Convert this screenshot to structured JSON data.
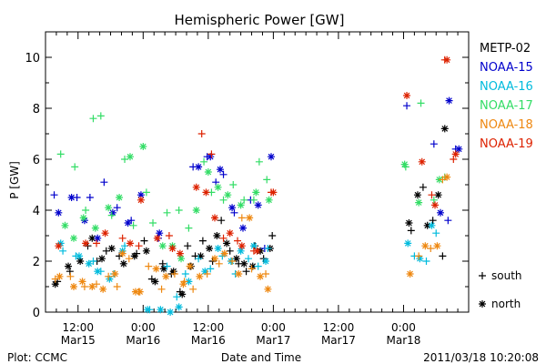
{
  "chart_data": {
    "type": "scatter",
    "title": "Hemispheric Power [GW]",
    "xlabel": "Date and Time",
    "ylabel": "P [GW]",
    "footer_left": "Plot: CCMC",
    "footer_right": "2011/03/18 10:20:08",
    "x_unit": "hours",
    "xlim": [
      6,
      84
    ],
    "ylim": [
      0,
      11
    ],
    "y_ticks": [
      0,
      2,
      4,
      6,
      8,
      10
    ],
    "x_ticks": [
      {
        "x": 12,
        "time": "12:00",
        "date": "Mar15"
      },
      {
        "x": 24,
        "time": "0:00",
        "date": "Mar16"
      },
      {
        "x": 36,
        "time": "12:00",
        "date": "Mar16"
      },
      {
        "x": 48,
        "time": "0:00",
        "date": "Mar17"
      },
      {
        "x": 60,
        "time": "12:00",
        "date": "Mar17"
      },
      {
        "x": 72,
        "time": "0:00",
        "date": "Mar18"
      }
    ],
    "legend_position": "right",
    "symbol_legend": [
      {
        "symbol": "+",
        "label": "south"
      },
      {
        "symbol": "*",
        "label": "north"
      }
    ],
    "series": [
      {
        "name": "METP-02",
        "color": "#000000",
        "south": [
          [
            8.2,
            1.2
          ],
          [
            10.5,
            1.6
          ],
          [
            13.8,
            2.6
          ],
          [
            15.5,
            2.0
          ],
          [
            17.2,
            2.4
          ],
          [
            19.6,
            2.2
          ],
          [
            22.8,
            2.3
          ],
          [
            24.2,
            2.8
          ],
          [
            25.6,
            1.3
          ],
          [
            27.6,
            1.9
          ],
          [
            29.2,
            1.5
          ],
          [
            30.8,
            0.8
          ],
          [
            32.2,
            2.6
          ],
          [
            33.6,
            2.2
          ],
          [
            35.0,
            2.8
          ],
          [
            36.8,
            2.0
          ],
          [
            38.4,
            3.6
          ],
          [
            40.0,
            2.4
          ],
          [
            41.6,
            1.9
          ],
          [
            43.0,
            1.6
          ],
          [
            44.6,
            2.6
          ],
          [
            46.2,
            2.1
          ],
          [
            47.8,
            3.0
          ],
          [
            73.4,
            3.2
          ],
          [
            75.6,
            4.9
          ],
          [
            77.4,
            3.6
          ],
          [
            79.2,
            2.2
          ]
        ],
        "north": [
          [
            7.8,
            1.1
          ],
          [
            10.2,
            1.8
          ],
          [
            12.4,
            2.0
          ],
          [
            14.6,
            2.9
          ],
          [
            16.4,
            2.1
          ],
          [
            18.2,
            2.5
          ],
          [
            20.4,
            1.9
          ],
          [
            22.4,
            2.2
          ],
          [
            24.6,
            2.4
          ],
          [
            26.2,
            1.2
          ],
          [
            27.8,
            1.7
          ],
          [
            29.6,
            1.6
          ],
          [
            31.2,
            0.7
          ],
          [
            32.8,
            1.8
          ],
          [
            34.6,
            2.2
          ],
          [
            36.2,
            2.5
          ],
          [
            37.6,
            3.0
          ],
          [
            39.4,
            2.7
          ],
          [
            41.2,
            2.1
          ],
          [
            42.6,
            1.9
          ],
          [
            44.2,
            1.8
          ],
          [
            45.6,
            2.4
          ],
          [
            47.4,
            2.5
          ],
          [
            73.0,
            3.5
          ],
          [
            74.6,
            4.6
          ],
          [
            76.4,
            3.4
          ],
          [
            78.4,
            4.6
          ],
          [
            79.6,
            7.2
          ]
        ]
      },
      {
        "name": "NOAA-15",
        "color": "#0000cc",
        "south": [
          [
            7.6,
            4.6
          ],
          [
            11.8,
            4.5
          ],
          [
            14.2,
            4.5
          ],
          [
            16.8,
            5.1
          ],
          [
            19.2,
            4.1
          ],
          [
            21.8,
            3.6
          ],
          [
            26.8,
            2.9
          ],
          [
            33.2,
            5.7
          ],
          [
            35.8,
            6.1
          ],
          [
            37.4,
            5.1
          ],
          [
            38.8,
            5.4
          ],
          [
            40.8,
            3.9
          ],
          [
            43.8,
            4.4
          ],
          [
            46.4,
            2.5
          ],
          [
            72.6,
            8.1
          ],
          [
            77.6,
            6.6
          ],
          [
            80.2,
            3.6
          ],
          [
            81.6,
            6.4
          ]
        ],
        "north": [
          [
            8.4,
            3.9
          ],
          [
            10.8,
            4.5
          ],
          [
            13.2,
            3.6
          ],
          [
            15.6,
            2.9
          ],
          [
            18.4,
            3.9
          ],
          [
            21.2,
            3.5
          ],
          [
            23.6,
            4.6
          ],
          [
            27.0,
            3.1
          ],
          [
            34.2,
            5.7
          ],
          [
            36.4,
            6.1
          ],
          [
            38.2,
            5.6
          ],
          [
            40.4,
            4.1
          ],
          [
            42.4,
            3.3
          ],
          [
            45.2,
            4.2
          ],
          [
            47.6,
            6.1
          ],
          [
            78.8,
            3.9
          ],
          [
            80.4,
            8.3
          ],
          [
            82.2,
            6.4
          ]
        ]
      },
      {
        "name": "NOAA-16",
        "color": "#00bbdd",
        "south": [
          [
            9.2,
            2.4
          ],
          [
            11.6,
            2.2
          ],
          [
            14.8,
            2.0
          ],
          [
            16.2,
            1.6
          ],
          [
            18.6,
            1.5
          ],
          [
            20.6,
            2.6
          ],
          [
            25.2,
            0.1
          ],
          [
            28.4,
            1.8
          ],
          [
            30.2,
            0.6
          ],
          [
            31.8,
            1.5
          ],
          [
            34.2,
            2.1
          ],
          [
            36.4,
            1.7
          ],
          [
            38.6,
            2.2
          ],
          [
            41.0,
            1.5
          ],
          [
            43.4,
            2.1
          ],
          [
            45.2,
            1.8
          ],
          [
            47.0,
            2.5
          ],
          [
            74.0,
            2.2
          ],
          [
            76.2,
            2.0
          ],
          [
            78.0,
            3.1
          ]
        ],
        "north": [
          [
            8.8,
            2.7
          ],
          [
            12.2,
            2.2
          ],
          [
            14.0,
            1.9
          ],
          [
            15.6,
            1.6
          ],
          [
            17.8,
            1.3
          ],
          [
            20.2,
            2.4
          ],
          [
            24.8,
            0.1
          ],
          [
            27.2,
            0.1
          ],
          [
            29.0,
            0.0
          ],
          [
            30.6,
            0.2
          ],
          [
            32.4,
            1.2
          ],
          [
            35.4,
            1.6
          ],
          [
            37.8,
            2.5
          ],
          [
            40.2,
            2.0
          ],
          [
            42.0,
            2.4
          ],
          [
            44.4,
            2.6
          ],
          [
            46.6,
            2.0
          ],
          [
            72.8,
            2.7
          ],
          [
            75.0,
            2.1
          ],
          [
            77.2,
            3.4
          ]
        ]
      },
      {
        "name": "NOAA-17",
        "color": "#33dd66",
        "south": [
          [
            8.8,
            6.2
          ],
          [
            11.4,
            5.7
          ],
          [
            13.4,
            4.0
          ],
          [
            14.8,
            7.6
          ],
          [
            16.2,
            7.7
          ],
          [
            18.2,
            3.8
          ],
          [
            20.6,
            6.0
          ],
          [
            22.2,
            3.4
          ],
          [
            24.6,
            4.7
          ],
          [
            25.8,
            3.5
          ],
          [
            28.4,
            3.9
          ],
          [
            30.6,
            4.0
          ],
          [
            32.4,
            3.3
          ],
          [
            35.2,
            5.9
          ],
          [
            36.6,
            4.7
          ],
          [
            38.8,
            4.4
          ],
          [
            40.6,
            5.0
          ],
          [
            42.6,
            4.4
          ],
          [
            44.4,
            4.4
          ],
          [
            45.4,
            5.9
          ],
          [
            46.8,
            5.2
          ],
          [
            72.4,
            5.7
          ],
          [
            75.2,
            8.2
          ],
          [
            77.6,
            4.4
          ],
          [
            79.6,
            5.3
          ]
        ],
        "north": [
          [
            9.6,
            3.4
          ],
          [
            11.2,
            2.9
          ],
          [
            13.0,
            3.7
          ],
          [
            15.2,
            3.3
          ],
          [
            17.6,
            4.1
          ],
          [
            19.6,
            4.5
          ],
          [
            21.6,
            6.1
          ],
          [
            24.0,
            6.5
          ],
          [
            27.6,
            2.6
          ],
          [
            29.4,
            2.6
          ],
          [
            31.0,
            2.1
          ],
          [
            33.8,
            4.0
          ],
          [
            36.0,
            5.5
          ],
          [
            37.8,
            4.9
          ],
          [
            39.6,
            4.6
          ],
          [
            42.0,
            4.2
          ],
          [
            44.8,
            4.7
          ],
          [
            47.2,
            4.4
          ],
          [
            72.2,
            5.8
          ],
          [
            74.8,
            4.3
          ],
          [
            78.6,
            5.2
          ]
        ]
      },
      {
        "name": "NOAA-18",
        "color": "#ee8811",
        "south": [
          [
            7.8,
            1.3
          ],
          [
            10.6,
            1.4
          ],
          [
            13.2,
            1.0
          ],
          [
            15.4,
            1.1
          ],
          [
            17.6,
            1.4
          ],
          [
            19.2,
            1.0
          ],
          [
            21.4,
            2.1
          ],
          [
            23.2,
            0.8
          ],
          [
            25.0,
            1.8
          ],
          [
            27.4,
            0.9
          ],
          [
            29.8,
            1.5
          ],
          [
            31.6,
            1.2
          ],
          [
            33.2,
            0.9
          ],
          [
            35.8,
            1.5
          ],
          [
            38.0,
            1.9
          ],
          [
            40.4,
            2.0
          ],
          [
            42.2,
            3.7
          ],
          [
            44.0,
            1.7
          ],
          [
            46.6,
            1.5
          ],
          [
            74.8,
            2.2
          ],
          [
            77.0,
            2.5
          ],
          [
            79.2,
            5.2
          ]
        ],
        "north": [
          [
            8.6,
            1.4
          ],
          [
            11.2,
            1.0
          ],
          [
            12.8,
            1.2
          ],
          [
            14.6,
            1.0
          ],
          [
            16.6,
            0.9
          ],
          [
            18.8,
            1.5
          ],
          [
            20.2,
            2.3
          ],
          [
            22.6,
            0.8
          ],
          [
            23.4,
            0.8
          ],
          [
            26.4,
            1.7
          ],
          [
            28.2,
            1.4
          ],
          [
            31.4,
            1.1
          ],
          [
            32.6,
            1.8
          ],
          [
            34.4,
            1.4
          ],
          [
            37.2,
            2.1
          ],
          [
            39.0,
            2.3
          ],
          [
            41.6,
            1.5
          ],
          [
            43.6,
            3.7
          ],
          [
            45.6,
            1.4
          ],
          [
            47.0,
            0.9
          ],
          [
            73.2,
            1.5
          ],
          [
            76.0,
            2.6
          ],
          [
            78.2,
            2.6
          ],
          [
            80.0,
            5.3
          ]
        ]
      },
      {
        "name": "NOAA-19",
        "color": "#dd2200",
        "south": [
          [
            15.4,
            2.7
          ],
          [
            20.2,
            2.9
          ],
          [
            23.2,
            2.6
          ],
          [
            28.8,
            3.0
          ],
          [
            34.8,
            7.0
          ],
          [
            36.6,
            6.2
          ],
          [
            38.8,
            2.9
          ],
          [
            41.4,
            2.8
          ],
          [
            44.4,
            2.4
          ],
          [
            47.6,
            4.7
          ],
          [
            77.2,
            4.6
          ],
          [
            79.6,
            9.9
          ],
          [
            81.2,
            6.0
          ]
        ],
        "north": [
          [
            8.4,
            2.6
          ],
          [
            13.4,
            2.7
          ],
          [
            17.0,
            3.1
          ],
          [
            21.6,
            2.7
          ],
          [
            23.6,
            4.4
          ],
          [
            26.6,
            2.9
          ],
          [
            29.4,
            2.5
          ],
          [
            30.8,
            2.3
          ],
          [
            33.8,
            4.9
          ],
          [
            35.6,
            4.7
          ],
          [
            37.2,
            3.7
          ],
          [
            40.0,
            3.1
          ],
          [
            42.2,
            2.6
          ],
          [
            45.0,
            2.4
          ],
          [
            48.0,
            4.7
          ],
          [
            72.6,
            8.5
          ],
          [
            75.4,
            5.9
          ],
          [
            77.8,
            4.2
          ],
          [
            80.0,
            9.9
          ],
          [
            81.6,
            6.2
          ]
        ]
      }
    ]
  }
}
